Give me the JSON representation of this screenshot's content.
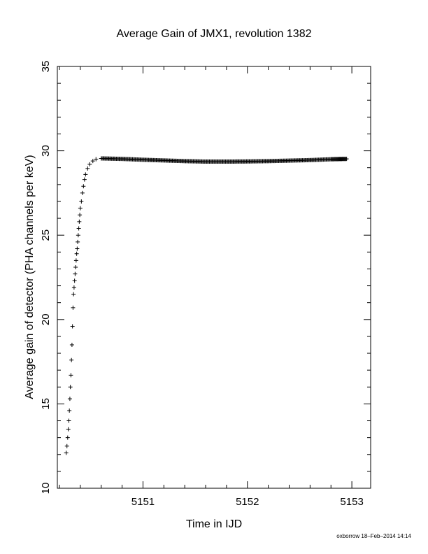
{
  "chart_data": {
    "type": "scatter",
    "title": "Average Gain of JMX1, revolution 1382",
    "xlabel": "Time in IJD",
    "ylabel": "Average gain of detector (PHA channels per keV)",
    "xlim": [
      5150.18,
      5153.18
    ],
    "ylim": [
      10,
      35
    ],
    "xticks": [
      5151,
      5152,
      5153
    ],
    "yticks": [
      10,
      15,
      20,
      25,
      30,
      35
    ],
    "marker": "plus",
    "grid": false,
    "legend": "none",
    "ramp_points": [
      [
        5150.265,
        12.1
      ],
      [
        5150.272,
        12.5
      ],
      [
        5150.279,
        13.0
      ],
      [
        5150.285,
        13.5
      ],
      [
        5150.29,
        14.0
      ],
      [
        5150.295,
        14.6
      ],
      [
        5150.3,
        15.3
      ],
      [
        5150.305,
        16.0
      ],
      [
        5150.31,
        16.7
      ],
      [
        5150.315,
        17.6
      ],
      [
        5150.32,
        18.5
      ],
      [
        5150.325,
        19.6
      ],
      [
        5150.33,
        20.7
      ],
      [
        5150.335,
        21.5
      ],
      [
        5150.34,
        21.9
      ],
      [
        5150.345,
        22.3
      ],
      [
        5150.35,
        22.7
      ],
      [
        5150.355,
        23.1
      ],
      [
        5150.36,
        23.5
      ],
      [
        5150.365,
        23.9
      ],
      [
        5150.37,
        24.2
      ],
      [
        5150.375,
        24.6
      ],
      [
        5150.38,
        25.0
      ],
      [
        5150.385,
        25.4
      ],
      [
        5150.39,
        25.8
      ],
      [
        5150.395,
        26.2
      ],
      [
        5150.4,
        26.6
      ],
      [
        5150.41,
        27.0
      ],
      [
        5150.42,
        27.5
      ],
      [
        5150.43,
        27.9
      ],
      [
        5150.44,
        28.3
      ],
      [
        5150.45,
        28.6
      ],
      [
        5150.47,
        28.95
      ],
      [
        5150.49,
        29.2
      ],
      [
        5150.52,
        29.4
      ],
      [
        5150.55,
        29.5
      ]
    ],
    "plateau_points": [
      [
        5150.6,
        29.55
      ],
      [
        5150.8,
        29.52
      ],
      [
        5151.0,
        29.47
      ],
      [
        5151.2,
        29.43
      ],
      [
        5151.4,
        29.39
      ],
      [
        5151.6,
        29.36
      ],
      [
        5151.8,
        29.36
      ],
      [
        5152.0,
        29.37
      ],
      [
        5152.2,
        29.39
      ],
      [
        5152.4,
        29.42
      ],
      [
        5152.6,
        29.45
      ],
      [
        5152.8,
        29.5
      ],
      [
        5152.95,
        29.52
      ]
    ],
    "credit": "oxborrow 18–Feb–2014 14:14"
  }
}
